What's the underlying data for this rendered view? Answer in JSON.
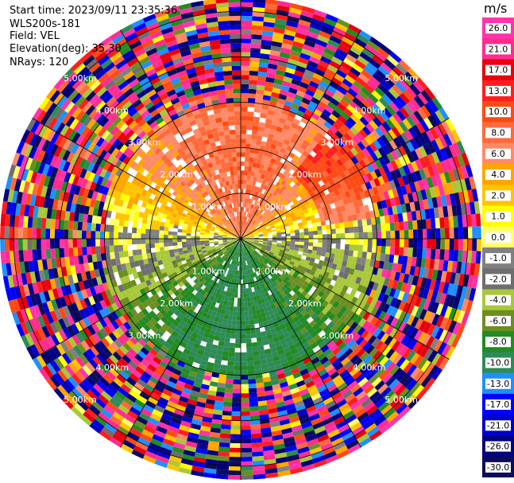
{
  "header": {
    "start_time": "Start time: 2023/09/11 23:35:36",
    "instrument": "WLS200s-181",
    "field": "Field: VEL",
    "elevation": "Elevation(deg): 35.30",
    "nrays": "NRays: 120"
  },
  "chart_data": {
    "type": "heatmap",
    "subtype": "polar-ppi",
    "field": "VEL",
    "units": "m/s",
    "n_rays": 120,
    "elevation_deg": 35.3,
    "range_ring_labels_km": [
      "1.00km",
      "2.00km",
      "3.00km",
      "4.00km",
      "5.00km"
    ],
    "range_rings_km": [
      1,
      2,
      3,
      4,
      5
    ],
    "color_scale": {
      "vmin": -30.0,
      "vmax": 30.0,
      "ticks": [
        "26.0",
        "21.0",
        "17.0",
        "13.0",
        "10.0",
        "8.0",
        "6.0",
        "4.0",
        "2.0",
        "1.0",
        "0.0",
        "-1.0",
        "-2.0",
        "-4.0",
        "-6.0",
        "-8.0",
        "-10.0",
        "-13.0",
        "-17.0",
        "-21.0",
        "-26.0",
        "-30.0"
      ],
      "levels": [
        {
          "lo": 26,
          "hi": 30,
          "color": "#ff33aa"
        },
        {
          "lo": 21,
          "hi": 26,
          "color": "#ff2c8f"
        },
        {
          "lo": 17,
          "hi": 21,
          "color": "#e8000f"
        },
        {
          "lo": 13,
          "hi": 17,
          "color": "#ff1e1e"
        },
        {
          "lo": 10,
          "hi": 13,
          "color": "#ff4a14"
        },
        {
          "lo": 8,
          "hi": 10,
          "color": "#ff6a3a"
        },
        {
          "lo": 6,
          "hi": 8,
          "color": "#ff8a66"
        },
        {
          "lo": 4,
          "hi": 6,
          "color": "#ffa500"
        },
        {
          "lo": 2,
          "hi": 4,
          "color": "#ffc400"
        },
        {
          "lo": 1,
          "hi": 2,
          "color": "#ffff00"
        },
        {
          "lo": 0,
          "hi": 1,
          "color": "#ffff66"
        },
        {
          "lo": -1,
          "hi": 0,
          "color": "#808080"
        },
        {
          "lo": -2,
          "hi": -1,
          "color": "#6e6e6e"
        },
        {
          "lo": -4,
          "hi": -2,
          "color": "#a8c83a"
        },
        {
          "lo": -6,
          "hi": -4,
          "color": "#6b8e23"
        },
        {
          "lo": -8,
          "hi": -6,
          "color": "#228b22"
        },
        {
          "lo": -10,
          "hi": -8,
          "color": "#2e8b57"
        },
        {
          "lo": -13,
          "hi": -10,
          "color": "#1e90ff"
        },
        {
          "lo": -17,
          "hi": -13,
          "color": "#0000ff"
        },
        {
          "lo": -21,
          "hi": -17,
          "color": "#0000cd"
        },
        {
          "lo": -26,
          "hi": -21,
          "color": "#000080"
        },
        {
          "lo": -30,
          "hi": -26,
          "color": "#0b0b5a"
        }
      ]
    },
    "regions": [
      {
        "desc": "north sector",
        "value": 4.0
      },
      {
        "desc": "north-east sector",
        "value": 10.0
      },
      {
        "desc": "near east / west",
        "value": -0.5
      },
      {
        "desc": "south sector",
        "value": -5.0
      },
      {
        "desc": "outer rings",
        "value": "noisy"
      }
    ]
  }
}
